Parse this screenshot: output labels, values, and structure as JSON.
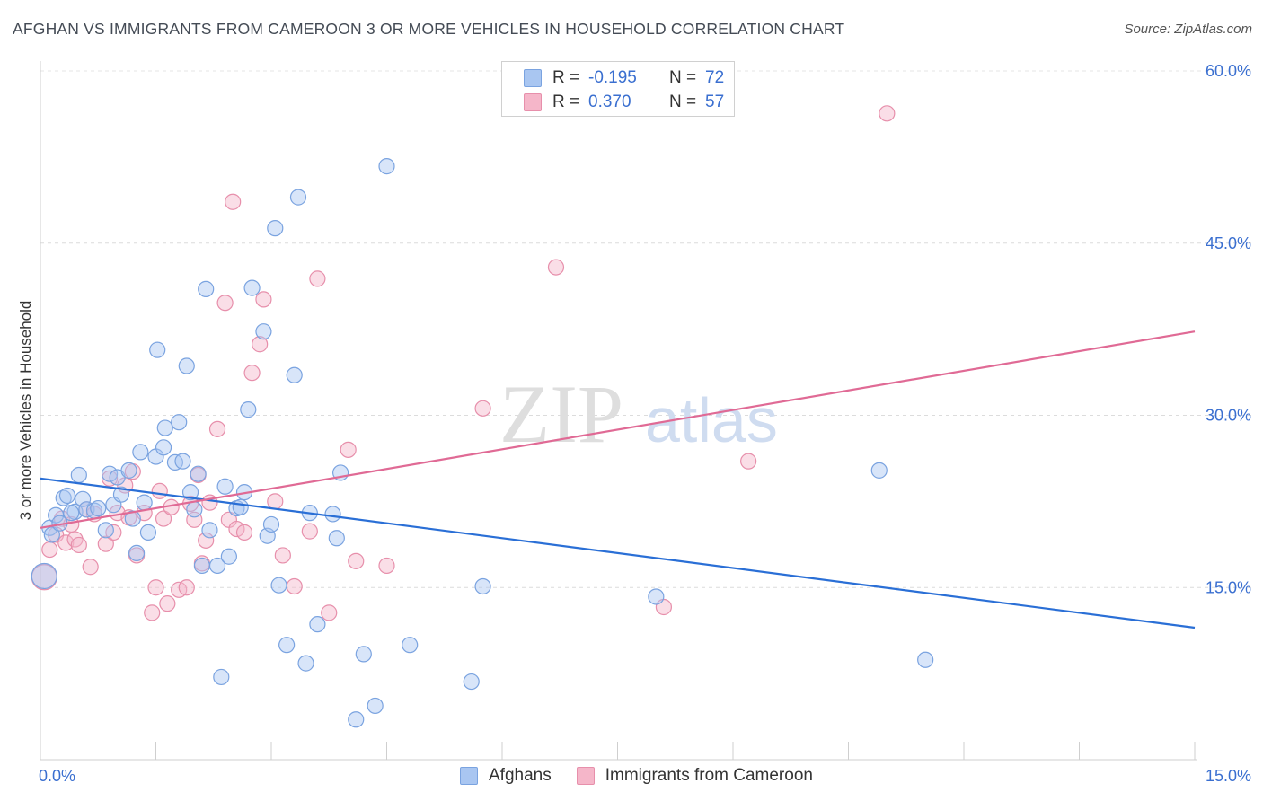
{
  "title": "AFGHAN VS IMMIGRANTS FROM CAMEROON 3 OR MORE VEHICLES IN HOUSEHOLD CORRELATION CHART",
  "source": "Source: ZipAtlas.com",
  "watermark": {
    "zip": "ZIP",
    "atlas": "atlas"
  },
  "colors": {
    "blue_fill": "#a9c6f1",
    "blue_stroke": "#7aa3e0",
    "blue_line": "#2a6fd6",
    "pink_fill": "#f5b6c9",
    "pink_stroke": "#e78fab",
    "pink_line": "#e06a95",
    "tick_text": "#3a6fd0"
  },
  "legend": {
    "rows": [
      {
        "r_label": "R =",
        "r_value": "-0.195",
        "n_label": "N =",
        "n_value": "72"
      },
      {
        "r_label": "R =",
        "r_value": "0.370",
        "n_label": "N =",
        "n_value": "57"
      }
    ]
  },
  "bottom_legend": [
    "Afghans",
    "Immigrants from Cameroon"
  ],
  "chart_data": {
    "type": "scatter",
    "title": "AFGHAN VS IMMIGRANTS FROM CAMEROON 3 OR MORE VEHICLES IN HOUSEHOLD CORRELATION CHART",
    "xlabel": "",
    "ylabel": "3 or more Vehicles in Household",
    "xlim": [
      0,
      15
    ],
    "ylim": [
      0,
      60
    ],
    "x_tick_labels": [
      "0.0%",
      "15.0%"
    ],
    "y_ticks": [
      15,
      30,
      45,
      60
    ],
    "y_tick_labels": [
      "15.0%",
      "30.0%",
      "45.0%",
      "60.0%"
    ],
    "grid": true,
    "series": [
      {
        "name": "Afghans",
        "r": -0.195,
        "n": 72,
        "trend": {
          "x": [
            0,
            15
          ],
          "y": [
            24.5,
            11.5
          ]
        },
        "points": [
          [
            0.05,
            16.0
          ],
          [
            0.12,
            20.2
          ],
          [
            0.15,
            19.6
          ],
          [
            0.2,
            21.3
          ],
          [
            0.3,
            22.8
          ],
          [
            0.35,
            23.0
          ],
          [
            0.45,
            21.6
          ],
          [
            0.5,
            24.8
          ],
          [
            0.55,
            22.7
          ],
          [
            0.6,
            21.8
          ],
          [
            0.7,
            21.7
          ],
          [
            0.75,
            21.9
          ],
          [
            0.85,
            20.0
          ],
          [
            0.9,
            24.9
          ],
          [
            0.95,
            22.2
          ],
          [
            1.0,
            24.6
          ],
          [
            1.05,
            23.1
          ],
          [
            1.15,
            25.2
          ],
          [
            1.2,
            21.0
          ],
          [
            1.25,
            18.0
          ],
          [
            1.3,
            26.8
          ],
          [
            1.35,
            22.4
          ],
          [
            1.4,
            19.8
          ],
          [
            1.5,
            26.4
          ],
          [
            1.52,
            35.7
          ],
          [
            1.6,
            27.2
          ],
          [
            1.62,
            28.9
          ],
          [
            1.75,
            25.9
          ],
          [
            1.8,
            29.4
          ],
          [
            1.85,
            26.0
          ],
          [
            1.9,
            34.3
          ],
          [
            1.95,
            23.3
          ],
          [
            2.0,
            21.8
          ],
          [
            2.05,
            24.9
          ],
          [
            2.1,
            16.9
          ],
          [
            2.15,
            41.0
          ],
          [
            2.2,
            20.0
          ],
          [
            2.3,
            16.9
          ],
          [
            2.35,
            7.2
          ],
          [
            2.4,
            23.8
          ],
          [
            2.45,
            17.7
          ],
          [
            2.55,
            21.9
          ],
          [
            2.6,
            22.0
          ],
          [
            2.65,
            23.3
          ],
          [
            2.7,
            30.5
          ],
          [
            2.75,
            41.1
          ],
          [
            2.9,
            37.3
          ],
          [
            2.95,
            19.5
          ],
          [
            3.0,
            20.5
          ],
          [
            3.05,
            46.3
          ],
          [
            3.1,
            15.2
          ],
          [
            3.2,
            10.0
          ],
          [
            3.3,
            33.5
          ],
          [
            3.35,
            49.0
          ],
          [
            3.45,
            8.4
          ],
          [
            3.5,
            21.5
          ],
          [
            3.6,
            11.8
          ],
          [
            3.8,
            21.4
          ],
          [
            3.85,
            19.3
          ],
          [
            3.9,
            25.0
          ],
          [
            4.1,
            3.5
          ],
          [
            4.2,
            9.2
          ],
          [
            4.35,
            4.7
          ],
          [
            4.5,
            51.7
          ],
          [
            4.8,
            10.0
          ],
          [
            5.6,
            6.8
          ],
          [
            5.75,
            15.1
          ],
          [
            8.0,
            14.2
          ],
          [
            10.9,
            25.2
          ],
          [
            11.5,
            8.7
          ],
          [
            0.4,
            21.5
          ],
          [
            0.25,
            20.6
          ]
        ]
      },
      {
        "name": "Immigrants from Cameroon",
        "r": 0.37,
        "n": 57,
        "trend": {
          "x": [
            0,
            15
          ],
          "y": [
            20.2,
            37.3
          ]
        },
        "points": [
          [
            0.05,
            15.9
          ],
          [
            0.12,
            18.3
          ],
          [
            0.2,
            19.6
          ],
          [
            0.28,
            21.0
          ],
          [
            0.33,
            18.9
          ],
          [
            0.4,
            20.5
          ],
          [
            0.45,
            19.2
          ],
          [
            0.5,
            18.7
          ],
          [
            0.6,
            21.8
          ],
          [
            0.65,
            16.8
          ],
          [
            0.7,
            21.4
          ],
          [
            0.85,
            18.8
          ],
          [
            0.9,
            24.5
          ],
          [
            0.95,
            19.8
          ],
          [
            1.0,
            21.5
          ],
          [
            1.1,
            23.9
          ],
          [
            1.15,
            21.1
          ],
          [
            1.2,
            25.1
          ],
          [
            1.25,
            17.8
          ],
          [
            1.35,
            21.5
          ],
          [
            1.45,
            12.8
          ],
          [
            1.5,
            15.0
          ],
          [
            1.55,
            23.4
          ],
          [
            1.6,
            21.0
          ],
          [
            1.65,
            13.6
          ],
          [
            1.7,
            22.0
          ],
          [
            1.8,
            14.8
          ],
          [
            1.9,
            15.0
          ],
          [
            1.95,
            22.3
          ],
          [
            2.0,
            20.9
          ],
          [
            2.05,
            24.8
          ],
          [
            2.1,
            17.1
          ],
          [
            2.15,
            19.1
          ],
          [
            2.2,
            22.4
          ],
          [
            2.3,
            28.8
          ],
          [
            2.4,
            39.8
          ],
          [
            2.45,
            20.9
          ],
          [
            2.5,
            48.6
          ],
          [
            2.55,
            20.1
          ],
          [
            2.65,
            19.8
          ],
          [
            2.75,
            33.7
          ],
          [
            2.85,
            36.2
          ],
          [
            2.9,
            40.1
          ],
          [
            3.05,
            22.5
          ],
          [
            3.15,
            17.8
          ],
          [
            3.3,
            15.1
          ],
          [
            3.5,
            19.9
          ],
          [
            3.6,
            41.9
          ],
          [
            3.75,
            12.8
          ],
          [
            4.0,
            27.0
          ],
          [
            4.1,
            17.3
          ],
          [
            4.5,
            16.9
          ],
          [
            5.75,
            30.6
          ],
          [
            6.7,
            42.9
          ],
          [
            8.1,
            13.3
          ],
          [
            9.2,
            26.0
          ],
          [
            11.0,
            56.3
          ]
        ]
      }
    ]
  }
}
